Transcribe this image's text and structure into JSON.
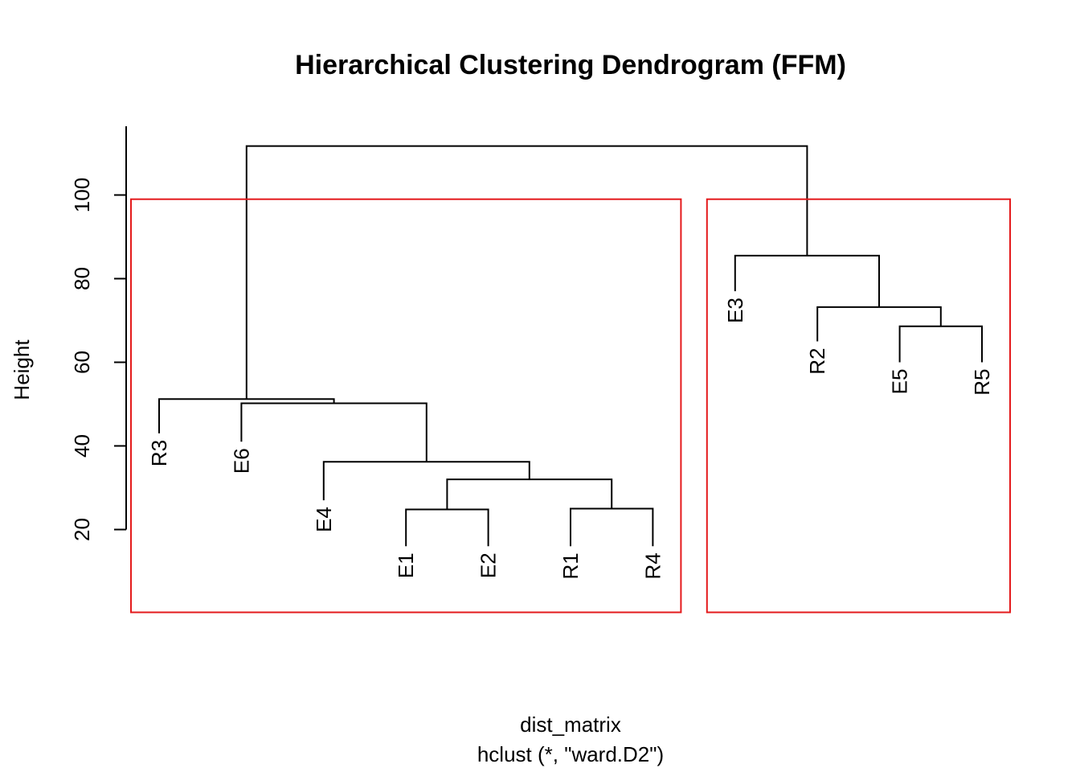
{
  "chart_data": {
    "type": "dendrogram",
    "title": "Hierarchical Clustering Dendrogram (FFM)",
    "xlabel": "dist_matrix",
    "sublabel": "hclust (*, \"ward.D2\")",
    "ylabel": "Height",
    "yticks": [
      20,
      40,
      60,
      80,
      100
    ],
    "leaves": [
      "R3",
      "E6",
      "E4",
      "E1",
      "E2",
      "R1",
      "R4",
      "E3",
      "R2",
      "E5",
      "R5"
    ],
    "leaf_heights": [
      43,
      41,
      27,
      16,
      16,
      16,
      16,
      77,
      65,
      60,
      60
    ],
    "merges": [
      {
        "left": "E1",
        "right": "E2",
        "height": 24.8
      },
      {
        "left": "R1",
        "right": "R4",
        "height": 25.0
      },
      {
        "left": "E1+E2",
        "right": "R1+R4",
        "height": 32.0
      },
      {
        "left": "E4",
        "right": "E1+E2+R1+R4",
        "height": 36.2
      },
      {
        "left": "E6",
        "right": "E4+E1+E2+R1+R4",
        "height": 50.2
      },
      {
        "left": "R3",
        "right": "E6+E4+E1+E2+R1+R4",
        "height": 51.2
      },
      {
        "left": "E5",
        "right": "R5",
        "height": 68.6
      },
      {
        "left": "R2",
        "right": "E5+R5",
        "height": 73.2
      },
      {
        "left": "E3",
        "right": "R2+E5+R5",
        "height": 85.5
      },
      {
        "left": "cluster-1",
        "right": "cluster-2",
        "height": 111.7
      }
    ],
    "rect_hclust": {
      "k": 2,
      "color": "#e41a1c",
      "clusters": [
        [
          "R3",
          "E6",
          "E4",
          "E1",
          "E2",
          "R1",
          "R4"
        ],
        [
          "E3",
          "R2",
          "E5",
          "R5"
        ]
      ]
    }
  }
}
